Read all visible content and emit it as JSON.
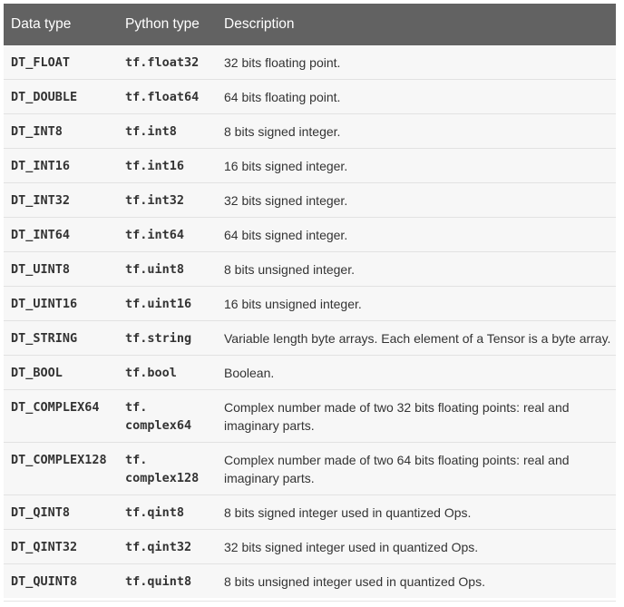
{
  "table": {
    "headers": [
      "Data type",
      "Python type",
      "Description"
    ],
    "rows": [
      {
        "data_type": "DT_FLOAT",
        "python_type": "tf.float32",
        "description": "32 bits floating point."
      },
      {
        "data_type": "DT_DOUBLE",
        "python_type": "tf.float64",
        "description": "64 bits floating point."
      },
      {
        "data_type": "DT_INT8",
        "python_type": "tf.int8",
        "description": "8 bits signed integer."
      },
      {
        "data_type": "DT_INT16",
        "python_type": "tf.int16",
        "description": "16 bits signed integer."
      },
      {
        "data_type": "DT_INT32",
        "python_type": "tf.int32",
        "description": "32 bits signed integer."
      },
      {
        "data_type": "DT_INT64",
        "python_type": "tf.int64",
        "description": "64 bits signed integer."
      },
      {
        "data_type": "DT_UINT8",
        "python_type": "tf.uint8",
        "description": "8 bits unsigned integer."
      },
      {
        "data_type": "DT_UINT16",
        "python_type": "tf.uint16",
        "description": "16 bits unsigned integer."
      },
      {
        "data_type": "DT_STRING",
        "python_type": "tf.string",
        "description": "Variable length byte arrays. Each element of a Tensor is a byte array."
      },
      {
        "data_type": "DT_BOOL",
        "python_type": "tf.bool",
        "description": "Boolean."
      },
      {
        "data_type": "DT_COMPLEX64",
        "python_type": "tf.\ncomplex64",
        "description": "Complex number made of two 32 bits floating points: real and imaginary parts."
      },
      {
        "data_type": "DT_COMPLEX128",
        "python_type": "tf.\ncomplex128",
        "description": "Complex number made of two 64 bits floating points: real and imaginary parts."
      },
      {
        "data_type": "DT_QINT8",
        "python_type": "tf.qint8",
        "description": "8 bits signed integer used in quantized Ops."
      },
      {
        "data_type": "DT_QINT32",
        "python_type": "tf.qint32",
        "description": "32 bits signed integer used in quantized Ops."
      },
      {
        "data_type": "DT_QUINT8",
        "python_type": "tf.quint8",
        "description": "8 bits unsigned integer used in quantized Ops."
      }
    ]
  }
}
